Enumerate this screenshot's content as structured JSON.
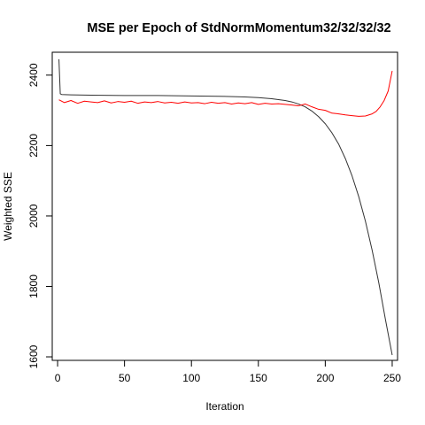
{
  "chart_data": {
    "type": "line",
    "title": "MSE per Epoch of StdNormMomentum32/32/32/32",
    "xlabel": "Iteration",
    "ylabel": "Weighted SSE",
    "xlim": [
      -4,
      254
    ],
    "ylim": [
      1590,
      2465
    ],
    "x_ticks": [
      0,
      50,
      100,
      150,
      200,
      250
    ],
    "y_ticks": [
      1600,
      1800,
      2000,
      2200,
      2400
    ],
    "grid": false,
    "legend": "none",
    "series": [
      {
        "color": "#333333",
        "points": [
          [
            1,
            2445
          ],
          [
            2,
            2347
          ],
          [
            3,
            2345
          ],
          [
            10,
            2344
          ],
          [
            25,
            2343
          ],
          [
            50,
            2342
          ],
          [
            75,
            2342
          ],
          [
            100,
            2341
          ],
          [
            120,
            2340
          ],
          [
            140,
            2338
          ],
          [
            150,
            2336
          ],
          [
            160,
            2333
          ],
          [
            170,
            2328
          ],
          [
            175,
            2324
          ],
          [
            180,
            2318
          ],
          [
            185,
            2310
          ],
          [
            190,
            2298
          ],
          [
            195,
            2282
          ],
          [
            200,
            2262
          ],
          [
            205,
            2236
          ],
          [
            210,
            2204
          ],
          [
            215,
            2163
          ],
          [
            220,
            2114
          ],
          [
            225,
            2055
          ],
          [
            230,
            1985
          ],
          [
            235,
            1903
          ],
          [
            240,
            1810
          ],
          [
            245,
            1705
          ],
          [
            250,
            1605
          ]
        ]
      },
      {
        "color": "#ff0000",
        "points": [
          [
            1,
            2330
          ],
          [
            5,
            2322
          ],
          [
            10,
            2328
          ],
          [
            15,
            2320
          ],
          [
            20,
            2326
          ],
          [
            25,
            2324
          ],
          [
            30,
            2322
          ],
          [
            35,
            2327
          ],
          [
            40,
            2321
          ],
          [
            45,
            2325
          ],
          [
            50,
            2323
          ],
          [
            55,
            2326
          ],
          [
            60,
            2320
          ],
          [
            65,
            2324
          ],
          [
            70,
            2322
          ],
          [
            75,
            2325
          ],
          [
            80,
            2321
          ],
          [
            85,
            2323
          ],
          [
            90,
            2320
          ],
          [
            95,
            2324
          ],
          [
            100,
            2321
          ],
          [
            105,
            2322
          ],
          [
            110,
            2319
          ],
          [
            115,
            2323
          ],
          [
            120,
            2320
          ],
          [
            125,
            2322
          ],
          [
            130,
            2318
          ],
          [
            135,
            2321
          ],
          [
            140,
            2319
          ],
          [
            145,
            2322
          ],
          [
            150,
            2317
          ],
          [
            155,
            2320
          ],
          [
            160,
            2318
          ],
          [
            165,
            2319
          ],
          [
            170,
            2317
          ],
          [
            175,
            2315
          ],
          [
            180,
            2313
          ],
          [
            185,
            2318
          ],
          [
            190,
            2310
          ],
          [
            195,
            2303
          ],
          [
            200,
            2300
          ],
          [
            205,
            2292
          ],
          [
            210,
            2290
          ],
          [
            215,
            2287
          ],
          [
            220,
            2285
          ],
          [
            225,
            2283
          ],
          [
            230,
            2284
          ],
          [
            235,
            2290
          ],
          [
            238,
            2297
          ],
          [
            241,
            2310
          ],
          [
            244,
            2328
          ],
          [
            247,
            2355
          ],
          [
            250,
            2412
          ]
        ]
      }
    ]
  }
}
